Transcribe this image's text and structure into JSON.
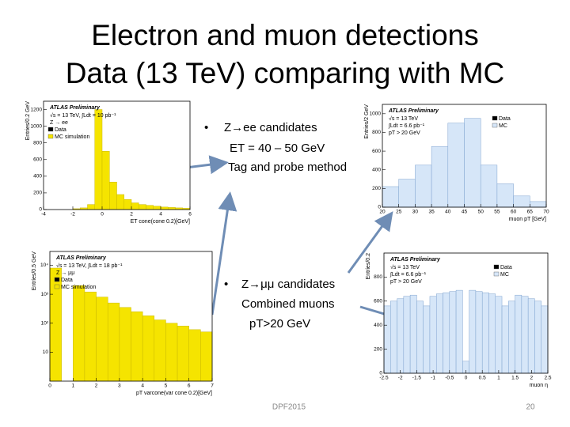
{
  "title": [
    "Electron and muon detections",
    "Data (13 TeV) comparing with MC"
  ],
  "bullets": [
    {
      "head": "Z→ee candidates",
      "lines": [
        "ET = 40 – 50 GeV",
        "Tag and probe method"
      ]
    },
    {
      "head": "Z→μμ candidates",
      "lines": [
        "Combined muons",
        "pT>20 GeV"
      ]
    }
  ],
  "plots": [
    {
      "atlas": "ATLAS Preliminary",
      "lines": [
        "√s = 13 TeV, ∫Ldt = 10 pb⁻¹",
        "Z → ee"
      ],
      "legend": [
        "Data",
        "MC simulation"
      ],
      "xlabel": "ET cone(cone 0.2)[GeV]",
      "ylabel": "Entries/0.2 GeV",
      "color": "#f5e400",
      "xlim": [
        -4,
        6
      ],
      "xticks": [
        -4,
        -2,
        0,
        2,
        4,
        6
      ],
      "ylim": [
        0,
        1300
      ],
      "yticks": [
        0,
        200,
        400,
        600,
        800,
        1000,
        1200
      ],
      "bins": [
        -2,
        -1.5,
        -1,
        -0.5,
        0,
        0.5,
        1,
        1.5,
        2,
        2.5,
        3,
        3.5,
        4,
        4.5,
        5,
        5.5,
        6
      ],
      "values": [
        10,
        20,
        60,
        1200,
        700,
        330,
        180,
        120,
        80,
        60,
        50,
        40,
        30,
        25,
        20,
        15
      ]
    },
    {
      "atlas": "ATLAS Preliminary",
      "lines": [
        "√s = 13 TeV",
        "∫Ldt = 6.6 pb⁻¹",
        "pT > 20 GeV"
      ],
      "legend": [
        "Data",
        "MC"
      ],
      "xlabel": "muon pT [GeV]",
      "ylabel": "Entries/2 GeV",
      "color": "#d6e6f8",
      "xlim": [
        20,
        70
      ],
      "xticks": [
        20,
        25,
        30,
        35,
        40,
        45,
        50,
        55,
        60,
        65,
        70
      ],
      "ylim": [
        0,
        1100
      ],
      "yticks": [
        0,
        200,
        400,
        600,
        800,
        1000
      ],
      "bins": [
        20,
        25,
        30,
        35,
        40,
        45,
        50,
        55,
        60,
        65,
        70
      ],
      "values": [
        220,
        300,
        450,
        650,
        900,
        950,
        450,
        250,
        120,
        60
      ]
    },
    {
      "atlas": "ATLAS Preliminary",
      "lines": [
        "√s = 13 TeV, ∫Ldt = 18 pb⁻¹",
        "Z → μμ"
      ],
      "legend": [
        "Data",
        "MC simulation"
      ],
      "xlabel": "pT varcone(var cone 0.2)[GeV]",
      "ylabel": "Entries/0.5 GeV",
      "color": "#f5e400",
      "log_y": true,
      "xlim": [
        0,
        7
      ],
      "xticks": [
        0,
        1,
        2,
        3,
        4,
        5,
        6,
        7
      ],
      "ylim": [
        1,
        30000
      ],
      "yticks": [
        {
          "value": 10,
          "label": "10"
        },
        {
          "value": 100,
          "label": "10²"
        },
        {
          "value": 1000,
          "label": "10³"
        },
        {
          "value": 10000,
          "label": "10⁴"
        }
      ],
      "bins": [
        0,
        0.5,
        1,
        1.5,
        2,
        2.5,
        3,
        3.5,
        4,
        4.5,
        5,
        5.5,
        6,
        6.5,
        7
      ],
      "values": [
        8000,
        0,
        2000,
        1200,
        800,
        500,
        350,
        250,
        180,
        130,
        100,
        80,
        60,
        50
      ]
    },
    {
      "atlas": "ATLAS Preliminary",
      "lines": [
        "√s = 13 TeV",
        "∫Ldt = 6.6 pb⁻¹",
        "pT > 20 GeV"
      ],
      "legend": [
        "Data",
        "MC"
      ],
      "xlabel": "muon η",
      "ylabel": "Entries/0.2",
      "color": "#d6e6f8",
      "xlim": [
        -2.5,
        2.5
      ],
      "xticks": [
        -2.5,
        -2,
        -1.5,
        -1,
        -0.5,
        0,
        0.5,
        1,
        1.5,
        2,
        2.5
      ],
      "ylim": [
        0,
        1000
      ],
      "yticks": [
        0,
        200,
        400,
        600,
        800
      ],
      "bins": [
        -2.5,
        -2.3,
        -2.1,
        -1.9,
        -1.7,
        -1.5,
        -1.3,
        -1.1,
        -0.9,
        -0.7,
        -0.5,
        -0.3,
        -0.1,
        0.1,
        0.3,
        0.5,
        0.7,
        0.9,
        1.1,
        1.3,
        1.5,
        1.7,
        1.9,
        2.1,
        2.3,
        2.5
      ],
      "values": [
        560,
        600,
        620,
        640,
        650,
        600,
        560,
        640,
        660,
        670,
        680,
        690,
        100,
        690,
        680,
        670,
        660,
        640,
        560,
        600,
        650,
        640,
        620,
        600,
        560
      ]
    }
  ],
  "footer": "DPF2015",
  "page": "20"
}
